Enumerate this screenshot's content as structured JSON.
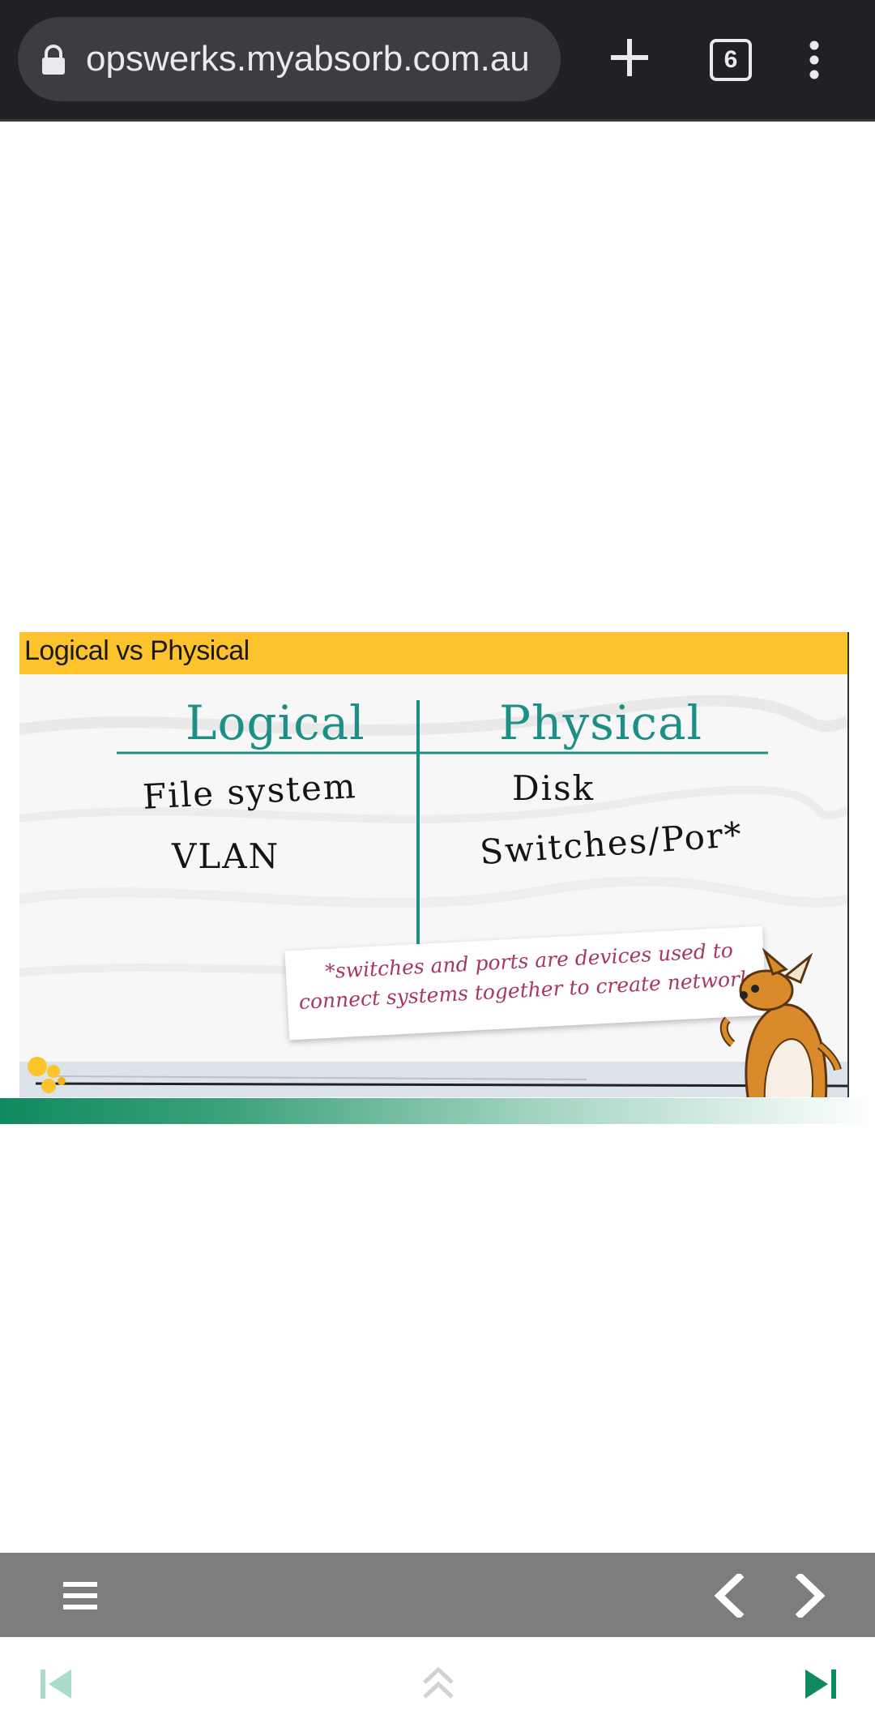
{
  "browser": {
    "url": "opswerks.myabsorb.com.au",
    "tab_count": "6"
  },
  "slide": {
    "title": "Logical vs Physical",
    "columns": {
      "logical_header": "Logical",
      "physical_header": "Physical",
      "logical_items": [
        "File system",
        "VLAN"
      ],
      "physical_items": [
        "Disk",
        "Switches/Por*"
      ]
    },
    "note": "*switches and ports are devices used to connect systems together to create networks",
    "colors": {
      "header": "#fdc32d",
      "teal": "#1e8f86",
      "note": "#a8385c"
    }
  },
  "player": {
    "icons": [
      "hamburger-icon",
      "chevron-left-icon",
      "chevron-right-icon"
    ]
  },
  "footer": {
    "icons": [
      "skip-to-start-icon",
      "double-chevron-up-icon",
      "skip-to-end-icon"
    ],
    "colors": {
      "active": "#0f8a5e",
      "disabled": "#a9dccb"
    }
  }
}
